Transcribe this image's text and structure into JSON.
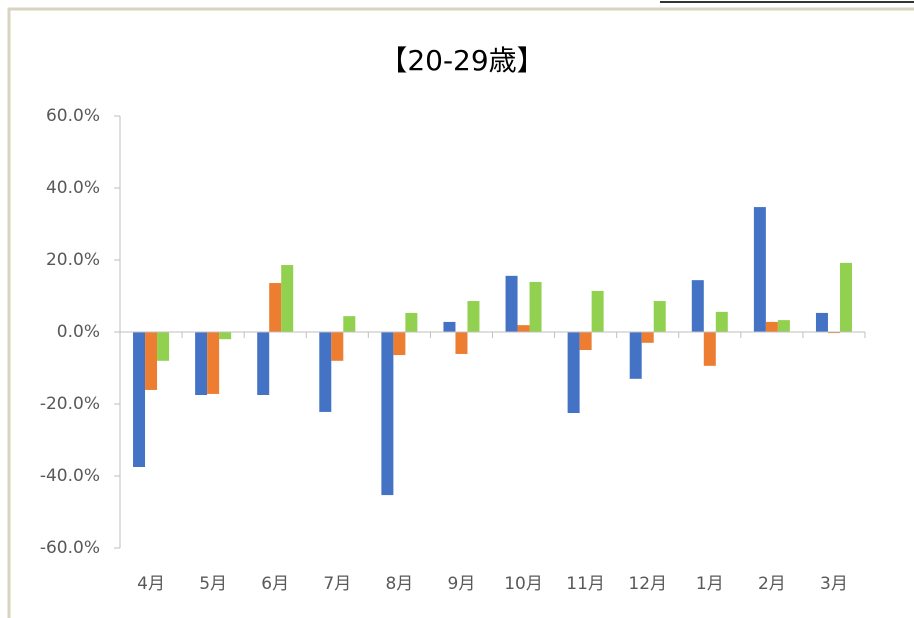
{
  "chart_data": {
    "type": "bar",
    "title": "【20-29歳】",
    "categories": [
      "4月",
      "5月",
      "6月",
      "7月",
      "8月",
      "9月",
      "10月",
      "11月",
      "12月",
      "1月",
      "2月",
      "3月"
    ],
    "series": [
      {
        "color": "#4472c4",
        "values": [
          -37.5,
          -17.5,
          -17.5,
          -22.2,
          -45.3,
          2.8,
          15.6,
          -22.5,
          -13,
          14.4,
          34.7,
          5.3
        ]
      },
      {
        "color": "#ed7d31",
        "values": [
          -16.1,
          -17.2,
          13.6,
          -8,
          -6.4,
          -6.1,
          1.9,
          -5,
          -3,
          -9.4,
          2.8,
          -0.3
        ]
      },
      {
        "color": "#92d050",
        "values": [
          -8,
          -2,
          18.6,
          4.4,
          5.3,
          8.6,
          13.9,
          11.4,
          8.6,
          5.6,
          3.3,
          19.2
        ]
      }
    ],
    "ylim": [
      -60,
      60
    ],
    "yticks": [
      {
        "value": -60,
        "label": "-60.0%"
      },
      {
        "value": -40,
        "label": "-40.0%"
      },
      {
        "value": -20,
        "label": "-20.0%"
      },
      {
        "value": 0,
        "label": "0.0%"
      },
      {
        "value": 20,
        "label": "20.0%"
      },
      {
        "value": 40,
        "label": "40.0%"
      },
      {
        "value": 60,
        "label": "60.0%"
      }
    ],
    "grid": false
  }
}
